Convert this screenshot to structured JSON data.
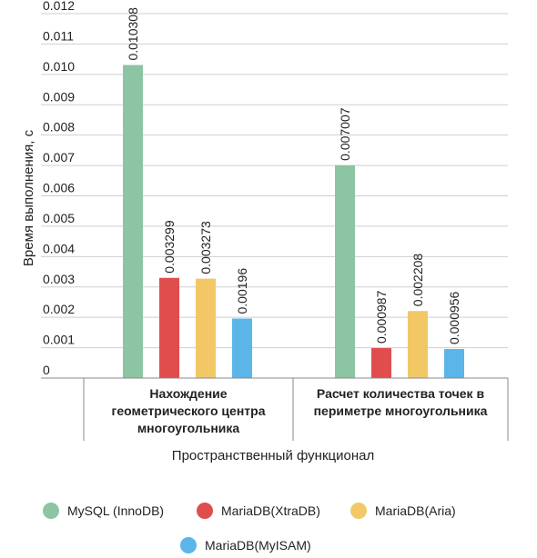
{
  "chart_data": {
    "type": "bar",
    "categories": [
      [
        "Нахождение",
        "геометрического центра",
        "многоугольника"
      ],
      [
        "Расчет количества точек в",
        "периметре многоугольника"
      ]
    ],
    "series": [
      {
        "name": "MySQL (InnoDB)",
        "color": "#8dc4a4",
        "values": [
          0.010308,
          0.007007
        ]
      },
      {
        "name": "MariaDB(XtraDB)",
        "color": "#df4d4d",
        "values": [
          0.003299,
          0.000987
        ]
      },
      {
        "name": "MariaDB(Aria)",
        "color": "#f2c867",
        "values": [
          0.003273,
          0.002208
        ]
      },
      {
        "name": "MariaDB(MyISAM)",
        "color": "#5bb5e8",
        "values": [
          0.00196,
          0.000956
        ]
      }
    ],
    "data_labels": [
      [
        "0.010308",
        "0.007007"
      ],
      [
        "0.003299",
        "0.000987"
      ],
      [
        "0.003273",
        "0.002208"
      ],
      [
        "0.00196",
        "0.000956"
      ]
    ],
    "yticks": [
      "0",
      "0.001",
      "0.002",
      "0.003",
      "0.004",
      "0.005",
      "0.006",
      "0.007",
      "0.008",
      "0.009",
      "0.010",
      "0.011",
      "0.012"
    ],
    "ylim": [
      0,
      0.012
    ],
    "xlabel": "Пространственный функционал",
    "ylabel": "Время выполнения, с",
    "grid": true,
    "legend_position": "bottom"
  }
}
